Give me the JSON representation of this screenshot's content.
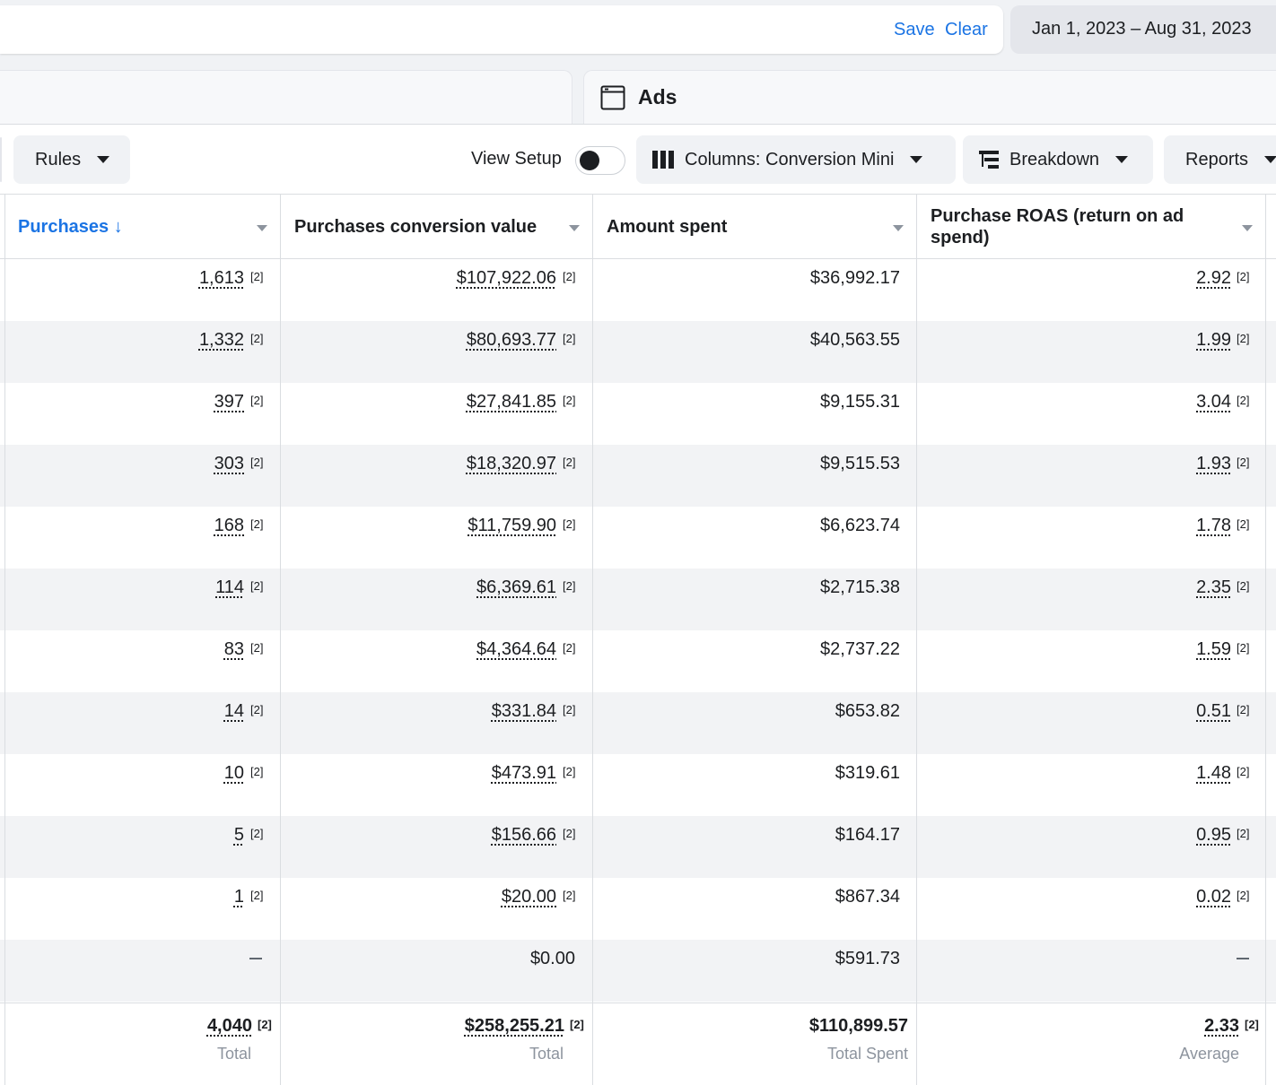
{
  "search": {
    "save_label": "Save",
    "clear_label": "Clear"
  },
  "date_range": "Jan 1, 2023 – Aug 31, 2023",
  "level_tab": {
    "label": "Ads",
    "icon": "ad-frame-icon"
  },
  "toolbar": {
    "rules_label": "Rules",
    "view_setup_label": "View Setup",
    "view_setup_on": false,
    "columns_label": "Columns: Conversion Mini",
    "breakdown_label": "Breakdown",
    "reports_label": "Reports"
  },
  "columns": [
    {
      "key": "purchases",
      "label": "Purchases ↓",
      "sorted": true
    },
    {
      "key": "conv_value",
      "label": "Purchases conversion value",
      "sorted": false
    },
    {
      "key": "amount_spent",
      "label": "Amount spent",
      "sorted": false
    },
    {
      "key": "roas",
      "label": "Purchase ROAS (return on ad spend)",
      "sorted": false
    }
  ],
  "ref_marker": "[2]",
  "rows": [
    {
      "purchases": "1,613",
      "conv_value": "$107,922.06",
      "amount_spent": "$36,992.17",
      "roas": "2.92"
    },
    {
      "purchases": "1,332",
      "conv_value": "$80,693.77",
      "amount_spent": "$40,563.55",
      "roas": "1.99"
    },
    {
      "purchases": "397",
      "conv_value": "$27,841.85",
      "amount_spent": "$9,155.31",
      "roas": "3.04"
    },
    {
      "purchases": "303",
      "conv_value": "$18,320.97",
      "amount_spent": "$9,515.53",
      "roas": "1.93"
    },
    {
      "purchases": "168",
      "conv_value": "$11,759.90",
      "amount_spent": "$6,623.74",
      "roas": "1.78"
    },
    {
      "purchases": "114",
      "conv_value": "$6,369.61",
      "amount_spent": "$2,715.38",
      "roas": "2.35"
    },
    {
      "purchases": "83",
      "conv_value": "$4,364.64",
      "amount_spent": "$2,737.22",
      "roas": "1.59"
    },
    {
      "purchases": "14",
      "conv_value": "$331.84",
      "amount_spent": "$653.82",
      "roas": "0.51"
    },
    {
      "purchases": "10",
      "conv_value": "$473.91",
      "amount_spent": "$319.61",
      "roas": "1.48"
    },
    {
      "purchases": "5",
      "conv_value": "$156.66",
      "amount_spent": "$164.17",
      "roas": "0.95"
    },
    {
      "purchases": "1",
      "conv_value": "$20.00",
      "amount_spent": "$867.34",
      "roas": "0.02"
    },
    {
      "purchases": null,
      "conv_value": "$0.00",
      "amount_spent": "$591.73",
      "roas": null,
      "plain_value": true
    }
  ],
  "totals": {
    "purchases": {
      "value": "4,040",
      "label": "Total"
    },
    "conv_value": {
      "value": "$258,255.21",
      "label": "Total"
    },
    "amount_spent": {
      "value": "$110,899.57",
      "label": "Total Spent"
    },
    "roas": {
      "value": "2.33",
      "label": "Average"
    }
  },
  "colors": {
    "accent": "#1b74e4",
    "alt_row": "#f2f3f5",
    "border": "#dadde1"
  }
}
